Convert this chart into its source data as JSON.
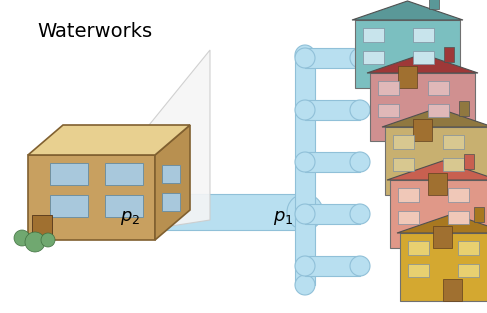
{
  "bg_color": "#ffffff",
  "pipe_color": "#b8dff0",
  "pipe_edge_color": "#90c0d8",
  "title": "Waterworks",
  "title_fontsize": 14,
  "p1_label": "$p_1$",
  "p2_label": "$p_2$",
  "label_fontsize": 13,
  "building": {
    "body_color": "#c8a060",
    "side_color": "#b89050",
    "top_color": "#e8d090",
    "window_color": "#a8c8dc",
    "door_color": "#a07030",
    "bush_color": "#70a870"
  },
  "house_colors": [
    {
      "body": "#7bbfc0",
      "roof": "#5a9898",
      "win": "#c8e4ec"
    },
    {
      "body": "#d09090",
      "roof": "#9e3838",
      "win": "#e0b8b8"
    },
    {
      "body": "#c8b070",
      "roof": "#907840",
      "win": "#d8c890"
    },
    {
      "body": "#e09888",
      "roof": "#c86050",
      "win": "#f0c8b8"
    },
    {
      "body": "#d4a830",
      "roof": "#a87820",
      "win": "#e8d070"
    }
  ]
}
